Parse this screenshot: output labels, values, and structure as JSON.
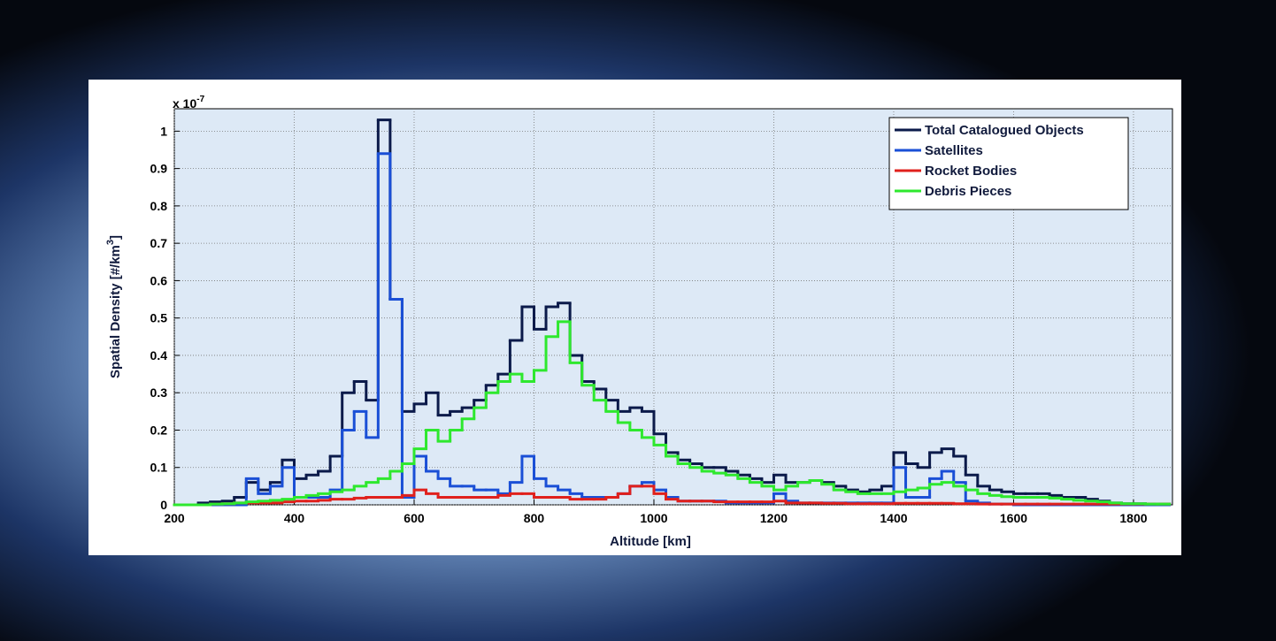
{
  "chart_data": {
    "type": "step-line",
    "ylabel": "Spatial Density [#/km",
    "ylabel_superscript": "3",
    "ylabel_end": "]",
    "y_multiplier": "x 10",
    "y_multiplier_exponent": "-7",
    "xlabel": "Altitude [km]",
    "xlim": [
      200,
      1865
    ],
    "ylim": [
      0,
      1.06
    ],
    "xticks": [
      200,
      400,
      600,
      800,
      1000,
      1200,
      1400,
      1600,
      1800
    ],
    "yticks": [
      0,
      0.1,
      0.2,
      0.3,
      0.4,
      0.5,
      0.6,
      0.7,
      0.8,
      0.9,
      1
    ],
    "grid": true,
    "legend": "upper right",
    "x": [
      200,
      220,
      240,
      260,
      280,
      300,
      320,
      340,
      360,
      380,
      400,
      420,
      440,
      460,
      480,
      500,
      520,
      540,
      560,
      580,
      600,
      620,
      640,
      660,
      680,
      700,
      720,
      740,
      760,
      780,
      800,
      820,
      840,
      860,
      880,
      900,
      920,
      940,
      960,
      980,
      1000,
      1020,
      1040,
      1060,
      1080,
      1100,
      1120,
      1140,
      1160,
      1180,
      1200,
      1220,
      1240,
      1260,
      1280,
      1300,
      1320,
      1340,
      1360,
      1380,
      1400,
      1420,
      1440,
      1460,
      1480,
      1500,
      1520,
      1540,
      1560,
      1580,
      1600,
      1620,
      1640,
      1660,
      1680,
      1700,
      1720,
      1740,
      1760,
      1780,
      1800,
      1820,
      1840
    ],
    "series": [
      {
        "name": "Total Catalogued Objects",
        "color": "#0b1a4a",
        "values": [
          0,
          0,
          0.005,
          0.008,
          0.01,
          0.02,
          0.06,
          0.04,
          0.06,
          0.12,
          0.07,
          0.08,
          0.09,
          0.13,
          0.3,
          0.33,
          0.28,
          1.03,
          0.55,
          0.25,
          0.27,
          0.3,
          0.24,
          0.25,
          0.26,
          0.28,
          0.32,
          0.35,
          0.44,
          0.53,
          0.47,
          0.53,
          0.54,
          0.4,
          0.33,
          0.31,
          0.28,
          0.25,
          0.26,
          0.25,
          0.19,
          0.14,
          0.12,
          0.11,
          0.1,
          0.1,
          0.09,
          0.08,
          0.07,
          0.06,
          0.08,
          0.06,
          0.06,
          0.065,
          0.06,
          0.05,
          0.04,
          0.035,
          0.04,
          0.05,
          0.14,
          0.11,
          0.1,
          0.14,
          0.15,
          0.13,
          0.08,
          0.05,
          0.04,
          0.035,
          0.03,
          0.03,
          0.03,
          0.025,
          0.02,
          0.02,
          0.015,
          0.01,
          0.005,
          0.003,
          0.003,
          0.002,
          0.002
        ]
      },
      {
        "name": "Satellites",
        "color": "#1a4fd6",
        "values": [
          0,
          0,
          0,
          0,
          0,
          0,
          0.07,
          0.03,
          0.05,
          0.1,
          0.02,
          0.02,
          0.02,
          0.04,
          0.2,
          0.25,
          0.18,
          0.94,
          0.55,
          0.02,
          0.13,
          0.09,
          0.07,
          0.05,
          0.05,
          0.04,
          0.04,
          0.03,
          0.06,
          0.13,
          0.07,
          0.05,
          0.04,
          0.03,
          0.02,
          0.02,
          0.02,
          0.03,
          0.05,
          0.06,
          0.04,
          0.02,
          0.01,
          0.01,
          0.01,
          0.01,
          0.005,
          0.005,
          0.005,
          0.005,
          0.03,
          0.01,
          0.005,
          0.005,
          0.005,
          0.005,
          0.005,
          0.005,
          0.005,
          0.005,
          0.1,
          0.02,
          0.02,
          0.07,
          0.09,
          0.06,
          0.01,
          0.005,
          0.002,
          0.002,
          0,
          0,
          0,
          0,
          0,
          0,
          0,
          0,
          0,
          0,
          0,
          0,
          0
        ]
      },
      {
        "name": "Rocket Bodies",
        "color": "#e0201c",
        "values": [
          0,
          0,
          0,
          0.002,
          0.003,
          0.005,
          0.005,
          0.005,
          0.005,
          0.008,
          0.01,
          0.01,
          0.012,
          0.015,
          0.015,
          0.018,
          0.02,
          0.02,
          0.02,
          0.025,
          0.04,
          0.03,
          0.02,
          0.02,
          0.02,
          0.02,
          0.02,
          0.025,
          0.03,
          0.03,
          0.02,
          0.02,
          0.02,
          0.015,
          0.015,
          0.015,
          0.02,
          0.03,
          0.05,
          0.05,
          0.03,
          0.015,
          0.01,
          0.01,
          0.01,
          0.008,
          0.008,
          0.008,
          0.008,
          0.008,
          0.01,
          0.005,
          0.005,
          0.005,
          0.004,
          0.004,
          0.003,
          0.003,
          0.003,
          0.003,
          0.004,
          0.004,
          0.004,
          0.004,
          0.004,
          0.003,
          0.003,
          0.002,
          0.002,
          0.002,
          0.002,
          0.002,
          0.002,
          0.002,
          0.002,
          0.002,
          0.002,
          0.002,
          0.002,
          0.002,
          0.002,
          0.002,
          0.002
        ]
      },
      {
        "name": "Debris Pieces",
        "color": "#2ee82e",
        "values": [
          0,
          0,
          0,
          0.002,
          0.003,
          0.005,
          0.008,
          0.01,
          0.012,
          0.015,
          0.02,
          0.025,
          0.03,
          0.035,
          0.04,
          0.05,
          0.06,
          0.07,
          0.09,
          0.11,
          0.15,
          0.2,
          0.17,
          0.2,
          0.23,
          0.26,
          0.3,
          0.33,
          0.35,
          0.33,
          0.36,
          0.45,
          0.49,
          0.38,
          0.32,
          0.28,
          0.25,
          0.22,
          0.2,
          0.18,
          0.16,
          0.13,
          0.11,
          0.1,
          0.09,
          0.085,
          0.08,
          0.07,
          0.06,
          0.05,
          0.04,
          0.05,
          0.06,
          0.065,
          0.055,
          0.04,
          0.035,
          0.03,
          0.03,
          0.03,
          0.035,
          0.04,
          0.045,
          0.055,
          0.06,
          0.05,
          0.04,
          0.03,
          0.025,
          0.022,
          0.02,
          0.02,
          0.02,
          0.018,
          0.015,
          0.012,
          0.01,
          0.008,
          0.005,
          0.003,
          0.003,
          0.002,
          0.002
        ]
      }
    ]
  }
}
